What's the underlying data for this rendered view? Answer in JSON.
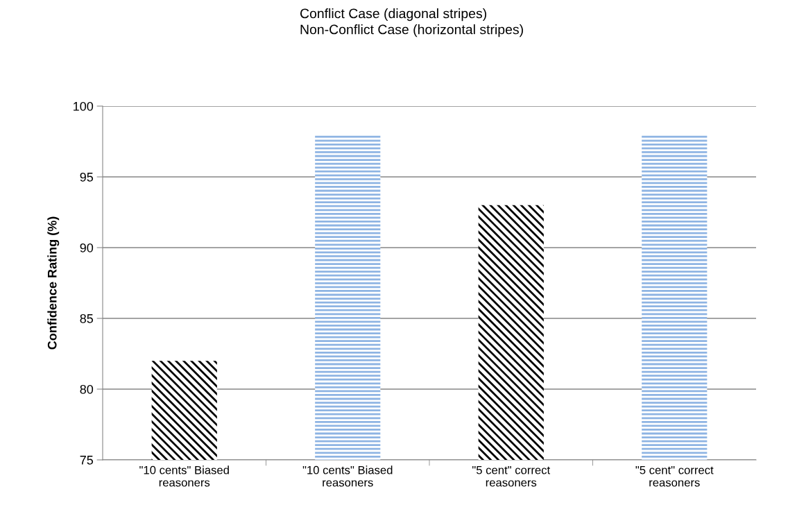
{
  "chart_data": {
    "type": "bar",
    "title": "Conflict Case (diagonal stripes)\nNon-Conflict Case (horizontal stripes)",
    "ylabel": "Confidence Rating (%)",
    "categories": [
      "\"10 cents\" Biased\nreasoners",
      "\"10 cents\" Biased\nreasoners",
      "\"5 cent\" correct\nreasoners",
      "\"5 cent\" correct\nreasoners"
    ],
    "values": [
      82,
      98,
      93,
      98
    ],
    "colors": [
      "#000000",
      "#8eb4e3",
      "#000000",
      "#8eb4e3"
    ],
    "ylim": [
      75,
      100
    ],
    "yticks": [
      75,
      80,
      85,
      90,
      95,
      100
    ],
    "grid": "y"
  }
}
